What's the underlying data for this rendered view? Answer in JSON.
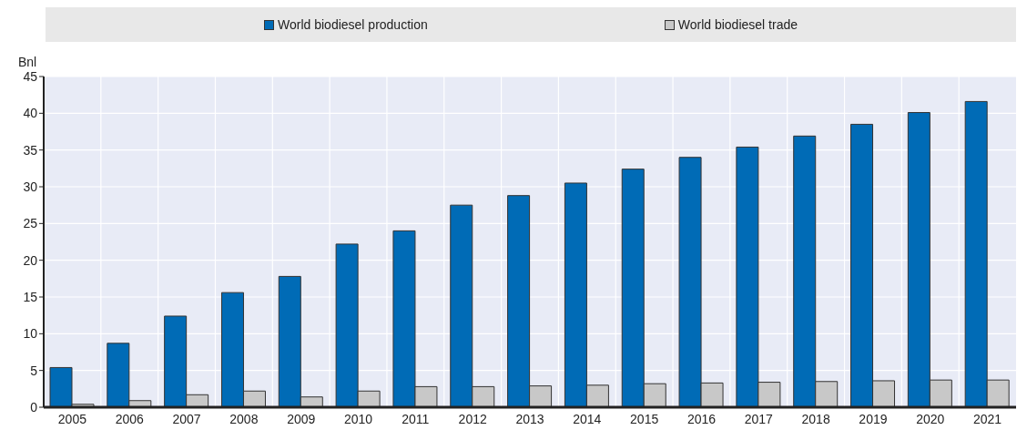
{
  "chart_data": {
    "type": "bar",
    "ylabel": "Bnl",
    "categories": [
      "2005",
      "2006",
      "2007",
      "2008",
      "2009",
      "2010",
      "2011",
      "2012",
      "2013",
      "2014",
      "2015",
      "2016",
      "2017",
      "2018",
      "2019",
      "2020",
      "2021"
    ],
    "series": [
      {
        "name": "World biodiesel production",
        "color": "#006bb6",
        "values": [
          5.4,
          8.7,
          12.4,
          15.6,
          17.8,
          22.2,
          24.0,
          27.5,
          28.8,
          30.5,
          32.4,
          34.0,
          35.4,
          36.9,
          38.5,
          40.1,
          41.6
        ]
      },
      {
        "name": "World biodiesel trade",
        "color": "#c8c8c8",
        "values": [
          0.4,
          0.9,
          1.7,
          2.2,
          1.4,
          2.2,
          2.8,
          2.8,
          2.9,
          3.0,
          3.2,
          3.3,
          3.4,
          3.5,
          3.6,
          3.7,
          3.7
        ]
      }
    ],
    "ylim": [
      0,
      45
    ],
    "yticks": [
      0,
      5,
      10,
      15,
      20,
      25,
      30,
      35,
      40,
      45
    ],
    "grid": true,
    "legend": "top"
  }
}
